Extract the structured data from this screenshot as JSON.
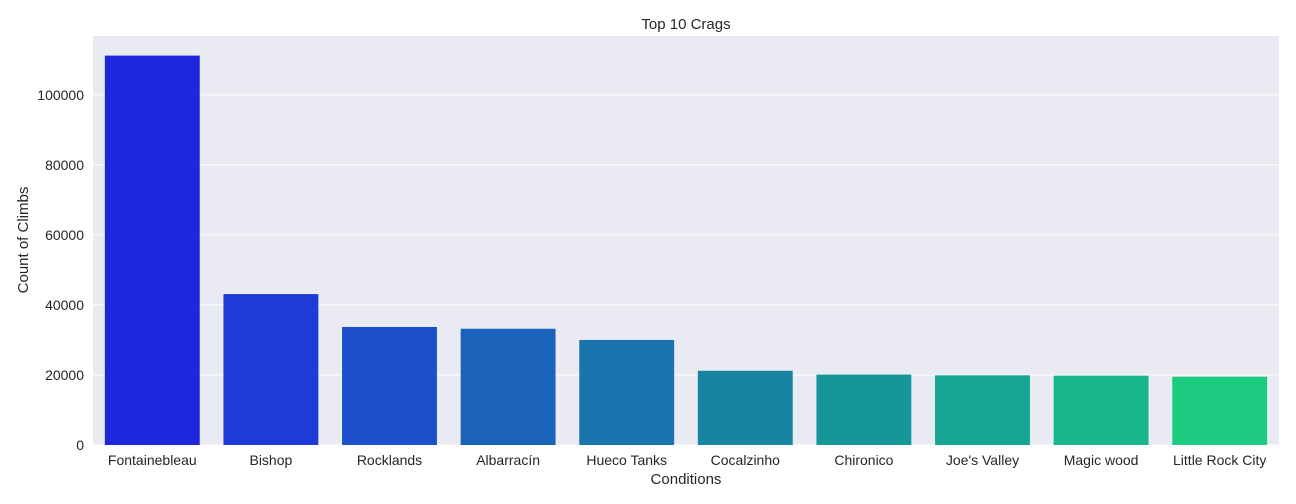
{
  "chart_data": {
    "type": "bar",
    "title": "Top 10 Crags",
    "xlabel": "Conditions",
    "ylabel": "Count of Climbs",
    "categories": [
      "Fontainebleau",
      "Bishop",
      "Rocklands",
      "Albarracín",
      "Hueco Tanks",
      "Cocalzinho",
      "Chironico",
      "Joe's Valley",
      "Magic wood",
      "Little Rock City"
    ],
    "values": [
      111200,
      43100,
      33700,
      33200,
      30000,
      21200,
      20100,
      19900,
      19800,
      19500
    ],
    "colors": [
      "#1f27dd",
      "#1e3cd5",
      "#1c4fc9",
      "#1b62bb",
      "#1a74ae",
      "#1784a1",
      "#159797",
      "#16a592",
      "#18b68a",
      "#1ccb80"
    ],
    "yticks": [
      0,
      20000,
      40000,
      60000,
      80000,
      100000
    ],
    "ylim": [
      0,
      116800
    ],
    "grid": true,
    "background": "#eaeaf2",
    "legend": "none"
  }
}
